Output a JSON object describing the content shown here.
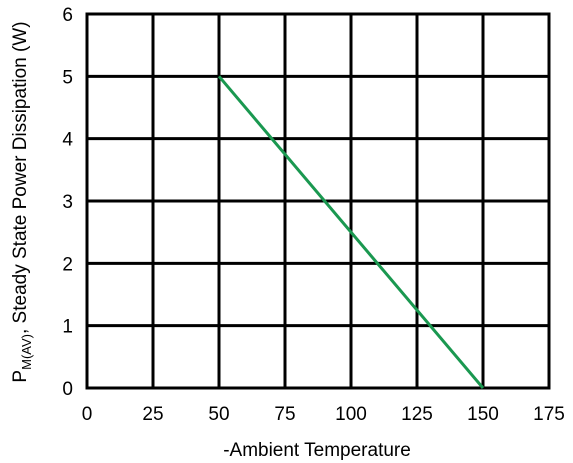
{
  "chart_data": {
    "type": "line",
    "title": "",
    "xlabel": "-Ambient Temperature",
    "ylabel": {
      "prefix": "P",
      "subscript": "M(AV)",
      "suffix": ", Steady State Power Dissipation (W)"
    },
    "xlim": [
      0,
      175
    ],
    "ylim": [
      0,
      6
    ],
    "xticks": [
      0,
      25,
      50,
      75,
      100,
      125,
      150,
      175
    ],
    "yticks": [
      0,
      1,
      2,
      3,
      4,
      5,
      6
    ],
    "grid": true,
    "series": [
      {
        "color": "#1a9850",
        "x": [
          50,
          150
        ],
        "y": [
          5,
          0
        ]
      }
    ]
  }
}
